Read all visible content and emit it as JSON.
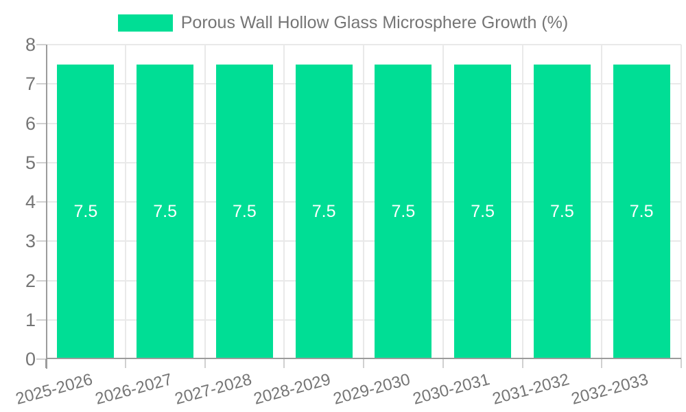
{
  "chart_data": {
    "type": "bar",
    "title": "Porous Wall Hollow Glass Microsphere Growth (%)",
    "categories": [
      "2025-2026",
      "2026-2027",
      "2027-2028",
      "2028-2029",
      "2029-2030",
      "2030-2031",
      "2031-2032",
      "2032-2033"
    ],
    "series": [
      {
        "name": "Porous Wall Hollow Glass Microsphere Growth (%)",
        "values": [
          7.5,
          7.5,
          7.5,
          7.5,
          7.5,
          7.5,
          7.5,
          7.5
        ]
      }
    ],
    "value_labels": [
      "7.5",
      "7.5",
      "7.5",
      "7.5",
      "7.5",
      "7.5",
      "7.5",
      "7.5"
    ],
    "xlabel": "",
    "ylabel": "",
    "ylim": [
      0,
      8
    ],
    "yticks": [
      0,
      1,
      2,
      3,
      4,
      5,
      6,
      7,
      8
    ],
    "grid": true,
    "legend_position": "top-center",
    "colors": {
      "bar": "#00DE95",
      "text": "#757575",
      "value_label": "#ffffff",
      "grid": "#e9e9e9",
      "axis": "#9b9b9b",
      "tick": "#d0d0d0",
      "background": "#ffffff"
    }
  }
}
